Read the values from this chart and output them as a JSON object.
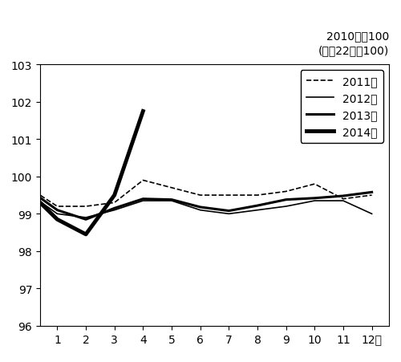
{
  "title_annotation_line1": "2010年＝100",
  "title_annotation_line2": "(平成22年＝100)",
  "xlabel_suffix": "月",
  "ylim": [
    96,
    103
  ],
  "yticks": [
    96,
    97,
    98,
    99,
    100,
    101,
    102,
    103
  ],
  "xticks": [
    1,
    2,
    3,
    4,
    5,
    6,
    7,
    8,
    9,
    10,
    11,
    12
  ],
  "series": [
    {
      "label": "2011年",
      "linestyle": "dashed",
      "linewidth": 1.2,
      "color": "#000000",
      "data_x": [
        0,
        1,
        2,
        3,
        4,
        5,
        6,
        7,
        8,
        9,
        10,
        11,
        12
      ],
      "data_y": [
        99.7,
        99.2,
        99.2,
        99.3,
        99.9,
        99.7,
        99.5,
        99.5,
        99.5,
        99.6,
        99.8,
        99.4,
        99.5
      ]
    },
    {
      "label": "2012年",
      "linestyle": "solid",
      "linewidth": 1.2,
      "color": "#000000",
      "data_x": [
        0,
        1,
        2,
        3,
        4,
        5,
        6,
        7,
        8,
        9,
        10,
        11,
        12
      ],
      "data_y": [
        99.55,
        99.0,
        98.9,
        99.1,
        99.35,
        99.35,
        99.1,
        99.0,
        99.1,
        99.2,
        99.35,
        99.35,
        99.0
      ]
    },
    {
      "label": "2013年",
      "linestyle": "solid",
      "linewidth": 2.2,
      "color": "#000000",
      "data_x": [
        0,
        1,
        2,
        3,
        4,
        5,
        6,
        7,
        8,
        9,
        10,
        11,
        12
      ],
      "data_y": [
        99.65,
        99.1,
        98.85,
        99.15,
        99.4,
        99.38,
        99.18,
        99.08,
        99.22,
        99.38,
        99.42,
        99.48,
        99.58
      ]
    },
    {
      "label": "2014年",
      "linestyle": "solid",
      "linewidth": 3.5,
      "color": "#000000",
      "data_x": [
        0,
        1,
        2,
        3,
        4
      ],
      "data_y": [
        99.6,
        98.85,
        98.45,
        99.5,
        101.75
      ]
    }
  ],
  "legend_loc": "upper right",
  "legend_fontsize": 10,
  "background_color": "#ffffff",
  "figure_size": [
    5.0,
    4.52
  ],
  "dpi": 100,
  "annotation_fontsize": 10,
  "tick_fontsize": 10,
  "xlim": [
    0.4,
    12.6
  ]
}
